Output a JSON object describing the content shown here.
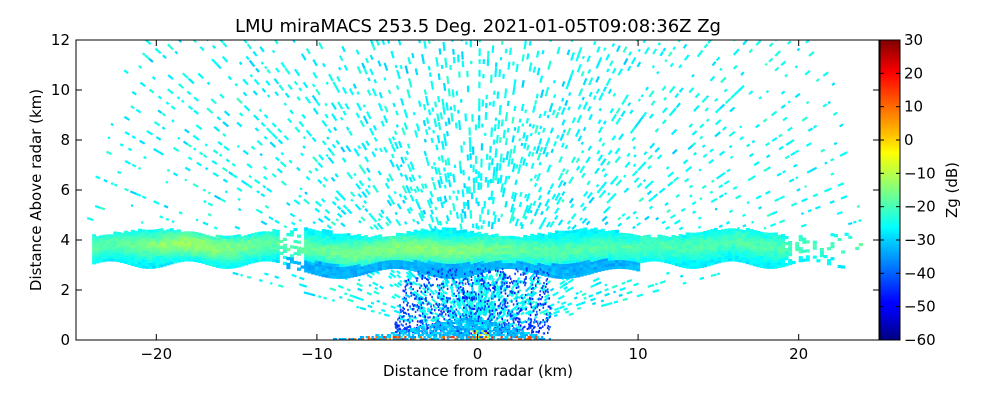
{
  "chart_data": {
    "type": "heatmap",
    "title": "LMU miraMACS 253.5 Deg. 2021-01-05T09:08:36Z  Zg",
    "xlabel": "Distance from radar (km)",
    "ylabel": "Distance Above radar  (km)",
    "xlim": [
      -25,
      25
    ],
    "ylim": [
      0,
      12
    ],
    "x_ticks": [
      -20,
      -10,
      0,
      10,
      20
    ],
    "x_tick_labels": [
      "−20",
      "−10",
      "0",
      "10",
      "20"
    ],
    "y_ticks": [
      0,
      2,
      4,
      6,
      8,
      10,
      12
    ],
    "y_tick_labels": [
      "0",
      "2",
      "4",
      "6",
      "8",
      "10",
      "12"
    ],
    "colorbar": {
      "label": "Zg (dB)",
      "range": [
        -60,
        30
      ],
      "ticks": [
        -60,
        -50,
        -40,
        -30,
        -20,
        -10,
        0,
        10,
        20,
        30
      ],
      "tick_labels": [
        "−60",
        "−50",
        "−40",
        "−30",
        "−20",
        "−10",
        "0",
        "10",
        "20",
        "30"
      ],
      "colormap": "jet"
    },
    "scan": {
      "azimuth_deg": 253.5,
      "max_range_km": 24.5,
      "left_edge_elevation_deg": 10,
      "right_edge_elevation_deg": 10
    },
    "features": [
      {
        "name": "background noise (RHI sector)",
        "height_km": [
          0,
          12
        ],
        "zg_db": -27
      },
      {
        "name": "cloud/melting layer",
        "x_km": [
          -24,
          24
        ],
        "height_km": [
          2.8,
          4.3
        ],
        "zg_db_range": [
          -35,
          -5
        ]
      },
      {
        "name": "weak echoes below layer",
        "x_km": [
          -5,
          4
        ],
        "height_km": [
          0.3,
          3
        ],
        "zg_db_range": [
          -50,
          -38
        ]
      },
      {
        "name": "near-field clutter",
        "x_km": [
          -8,
          4
        ],
        "height_km": [
          0,
          0.8
        ],
        "zg_db_range": [
          -60,
          20
        ]
      }
    ]
  }
}
